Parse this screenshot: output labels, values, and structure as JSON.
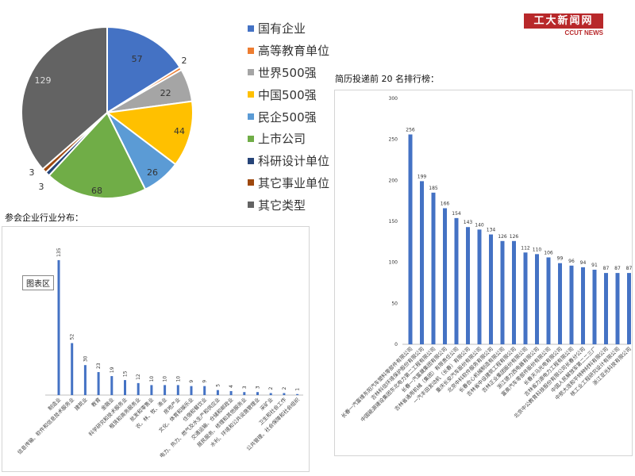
{
  "logo": {
    "main": "工大新闻网",
    "sub": "CCUT NEWS"
  },
  "tooltip": "图表区",
  "titles": {
    "industry": "参会企业行业分布：",
    "ranking": "简历投递前 20 名排行榜："
  },
  "chart_data": [
    {
      "type": "pie",
      "labels": [
        "国有企业",
        "高等教育单位",
        "世界500强",
        "中国500强",
        "民企500强",
        "上市公司",
        "科研设计单位",
        "其它事业单位",
        "其它类型"
      ],
      "values": [
        57,
        2,
        22,
        44,
        26,
        68,
        3,
        3,
        129
      ],
      "colors": [
        "#4472c4",
        "#ed7d31",
        "#a5a5a5",
        "#ffc000",
        "#5b9bd5",
        "#70ad47",
        "#264478",
        "#9e480e",
        "#636363"
      ],
      "legend": "right"
    },
    {
      "type": "bar",
      "categories": [
        "制造业",
        "信息传输、软件和信息技术服务业",
        "建筑业",
        "教育",
        "金融业",
        "科学研究和技术服务业",
        "租赁和商务服务业",
        "批发和零售业",
        "农、林、牧、渔业",
        "房地产业",
        "文化、体育和娱乐业",
        "住宿和餐饮业",
        "电力、热力、燃气及水生产和供应业",
        "交通运输、仓储和邮政业",
        "居民服务、修理和其他服务业",
        "水利、环境和公共设施管理业",
        "采矿业",
        "卫生和社会工作",
        "公共管理、社会保障和社会组织"
      ],
      "values": [
        135,
        52,
        30,
        23,
        19,
        15,
        12,
        10,
        10,
        10,
        9,
        9,
        5,
        4,
        3,
        3,
        2,
        2,
        1
      ],
      "color": "#4472c4",
      "ylim": [
        0,
        150
      ]
    },
    {
      "type": "bar",
      "categories": [
        "长春一汽富维东阳汽车塑料零部件有限公司",
        "吉林科信环境保护股份有限公司",
        "中国能源建设集团东北电力第二工程有限公司",
        "长春一汽富晟集团有限公司",
        "吉林省通用机械（集团）有限责任公司",
        "一汽丰田发动机（长春）有限公司",
        "重庆长安汽车股份有限公司",
        "北京中科软件服务有限公司",
        "长春合心机械制造有限公司",
        "吉林省中设建筑工程有限公司",
        "吉林正业集团股份有限公司",
        "浙江德力西电器有限公司",
        "富奥汽车零部件股份有限公司",
        "长春天马光电有限公司",
        "吉林省力源电力工程有限公司",
        "北京中公教育科技股份有限公司长春分公司",
        "中国人民解放军第二二三厂",
        "中航大连和平特种材料有限公司",
        "核工业工程研究设计有限公司",
        "浙江亚光科技有限公司"
      ],
      "values": [
        256,
        199,
        185,
        166,
        154,
        143,
        140,
        134,
        126,
        126,
        112,
        110,
        106,
        99,
        96,
        94,
        91,
        87,
        87,
        87
      ],
      "color": "#4472c4",
      "ylim": [
        0,
        300
      ],
      "yticks": [
        0,
        50,
        100,
        150,
        200,
        250,
        300
      ]
    }
  ]
}
